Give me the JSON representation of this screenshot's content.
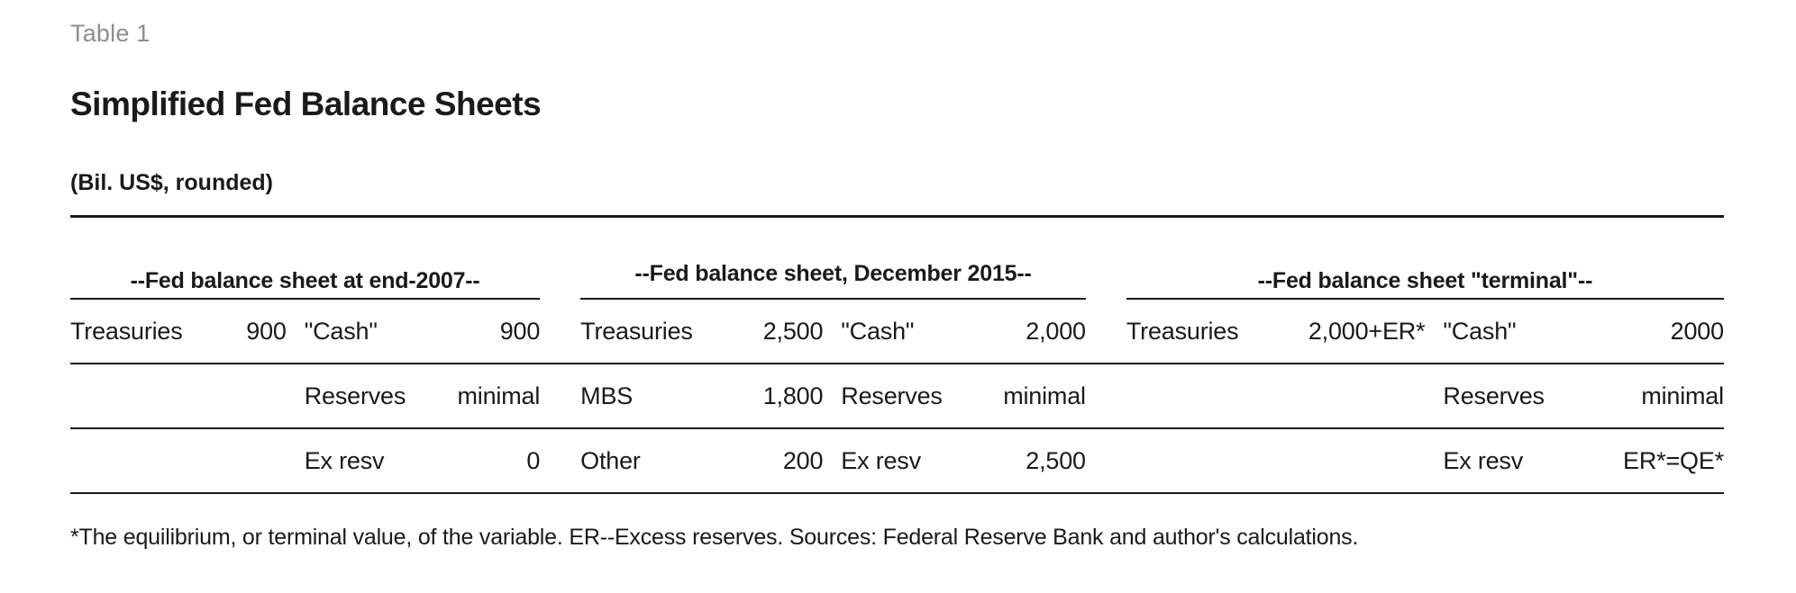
{
  "page": {
    "table_label": "Table 1",
    "title": "Simplified Fed Balance Sheets",
    "subtitle": "(Bil. US$, rounded)",
    "footnote": "*The equilibrium, or terminal value, of the variable. ER--Excess reserves. Sources: Federal Reserve Bank and author's calculations."
  },
  "colors": {
    "text": "#1a1a1a",
    "muted_label": "#8d8d8d",
    "rule": "#1a1a1a",
    "background": "#ffffff"
  },
  "chart_data": {
    "type": "table",
    "title": "Simplified Fed Balance Sheets",
    "units": "Bil. US$, rounded",
    "column_roles": [
      "asset label",
      "asset value",
      "liability label",
      "liability value"
    ],
    "groups": [
      {
        "header": "--Fed balance sheet at end-2007--",
        "rows": [
          [
            "Treasuries",
            "900",
            "\"Cash\"",
            "900"
          ],
          [
            "",
            "",
            "Reserves",
            "minimal"
          ],
          [
            "",
            "",
            "Ex resv",
            "0"
          ]
        ]
      },
      {
        "header": "--Fed balance sheet, December 2015--",
        "rows": [
          [
            "Treasuries",
            "2,500",
            "\"Cash\"",
            "2,000"
          ],
          [
            "MBS",
            "1,800",
            "Reserves",
            "minimal"
          ],
          [
            "Other",
            "200",
            "Ex resv",
            "2,500"
          ]
        ]
      },
      {
        "header": "--Fed balance sheet \"terminal\"--",
        "rows": [
          [
            "Treasuries",
            "2,000+ER*",
            "\"Cash\"",
            "2000"
          ],
          [
            "",
            "",
            "Reserves",
            "minimal"
          ],
          [
            "",
            "",
            "Ex resv",
            "ER*=QE*"
          ]
        ]
      }
    ],
    "footnote": "*The equilibrium, or terminal value, of the variable. ER--Excess reserves. Sources: Federal Reserve Bank and author's calculations."
  }
}
